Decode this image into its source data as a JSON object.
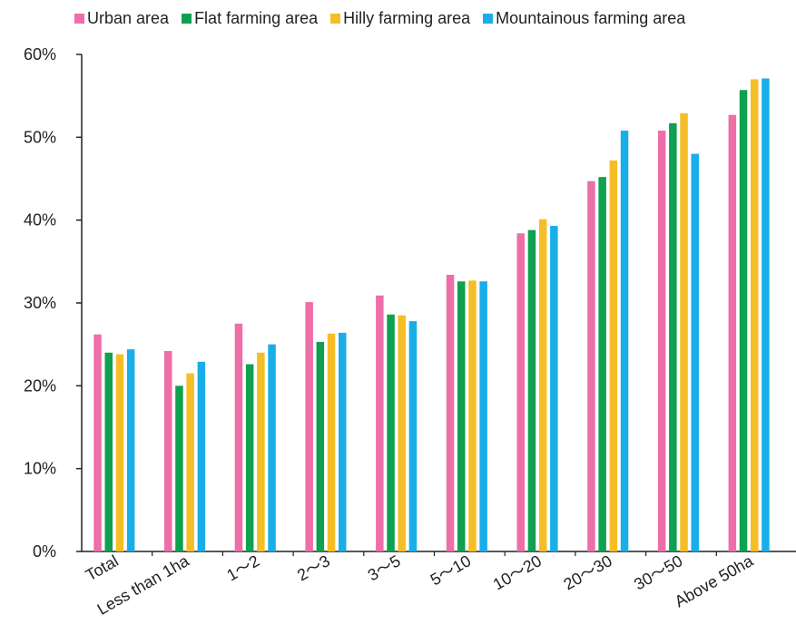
{
  "chart_data": {
    "type": "bar",
    "categories": [
      "Total",
      "Less than 1ha",
      "1～2",
      "2～3",
      "3～5",
      "5～10",
      "10～20",
      "20～30",
      "30～50",
      "Above 50ha"
    ],
    "series": [
      {
        "name": "Urban area",
        "color": "#ee6ea8",
        "values": [
          26.2,
          24.2,
          27.5,
          30.1,
          30.9,
          33.4,
          38.4,
          44.7,
          50.8,
          52.7
        ]
      },
      {
        "name": "Flat farming area",
        "color": "#0fa050",
        "values": [
          24.0,
          20.0,
          22.6,
          25.3,
          28.6,
          32.6,
          38.8,
          45.2,
          51.7,
          55.7
        ]
      },
      {
        "name": "Hilly farming area",
        "color": "#f6be26",
        "values": [
          23.8,
          21.5,
          24.0,
          26.3,
          28.5,
          32.7,
          40.1,
          47.2,
          52.9,
          57.0
        ]
      },
      {
        "name": "Mountainous farming area",
        "color": "#19aee8",
        "values": [
          24.4,
          22.9,
          25.0,
          26.4,
          27.8,
          32.6,
          39.3,
          50.8,
          48.0,
          57.1
        ]
      }
    ],
    "ylim": [
      0,
      60
    ],
    "yticks": [
      "0%",
      "10%",
      "20%",
      "30%",
      "40%",
      "50%",
      "60%"
    ],
    "ytick_values": [
      0,
      10,
      20,
      30,
      40,
      50,
      60
    ],
    "legend_position": "top",
    "grid": false
  }
}
